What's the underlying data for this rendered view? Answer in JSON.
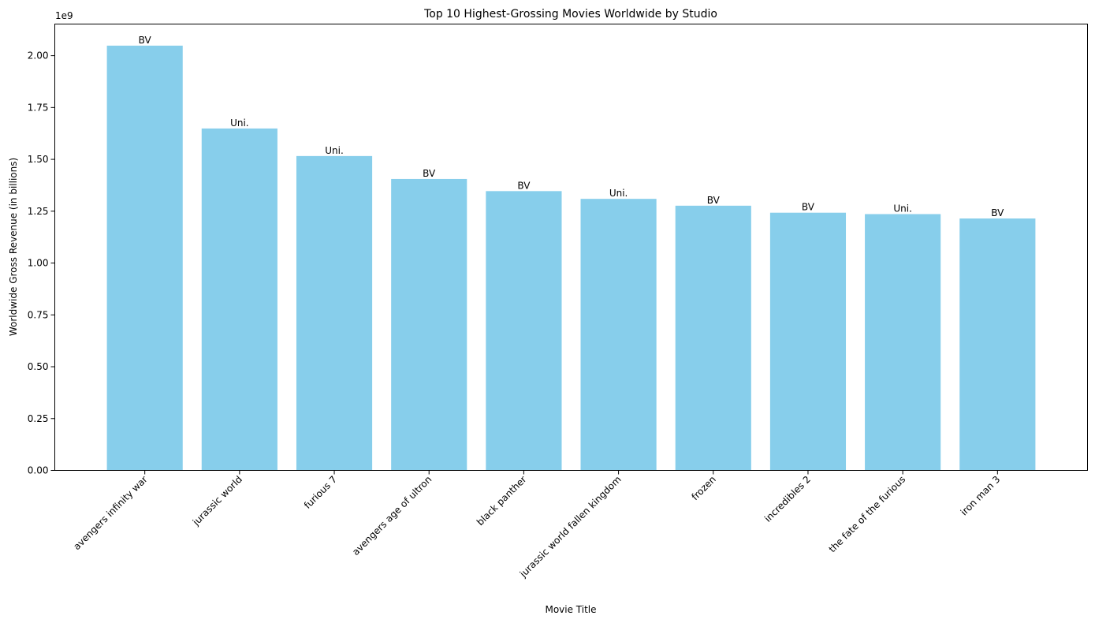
{
  "chart_data": {
    "type": "bar",
    "title": "Top 10 Highest-Grossing Movies Worldwide by Studio",
    "xlabel": "Movie Title",
    "ylabel": "Worldwide Gross Revenue (in billions)",
    "y_offset_label": "1e9",
    "ylim": [
      0,
      2152500000
    ],
    "yticks": [
      0,
      250000000,
      500000000,
      750000000,
      1000000000,
      1250000000,
      1500000000,
      1750000000,
      2000000000
    ],
    "ytick_labels": [
      "0.00",
      "0.25",
      "0.50",
      "0.75",
      "1.00",
      "1.25",
      "1.50",
      "1.75",
      "2.00"
    ],
    "categories": [
      "avengers infinity war",
      "jurassic world",
      "furious 7",
      "avengers age of ultron",
      "black panther",
      "jurassic world fallen kingdom",
      "frozen",
      "incredibles 2",
      "the fate of the furious",
      "iron man 3"
    ],
    "values": [
      2048400000,
      1648900000,
      1516000000,
      1405400000,
      1346900000,
      1309500000,
      1276500000,
      1242800000,
      1236000000,
      1214800000
    ],
    "bar_labels": [
      "BV",
      "Uni.",
      "Uni.",
      "BV",
      "BV",
      "Uni.",
      "BV",
      "BV",
      "Uni.",
      "BV"
    ],
    "bar_color": "#87CEEB",
    "grid": false
  }
}
